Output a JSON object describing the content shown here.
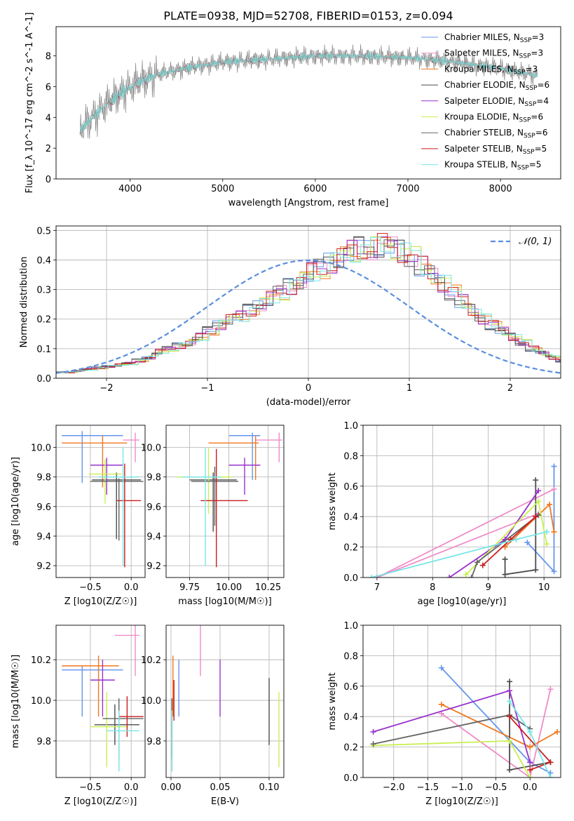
{
  "colors": [
    "#6495ed",
    "#f08cc8",
    "#f07820",
    "#4c4c4c",
    "#9932cc",
    "#c8f050",
    "#646464",
    "#c81e1e",
    "#78e6e6"
  ],
  "chart_data": [
    {
      "id": "spectrum",
      "type": "line",
      "title": "PLATE=0938, MJD=52708, FIBERID=0153, z=0.094",
      "xlabel": "wavelength [Angstrom, rest frame]",
      "ylabel": "Flux [f_λ 10^-17 erg cm^-2 s^-1 A^-1]",
      "xlim": [
        3200,
        8650
      ],
      "ylim": [
        0,
        9.9
      ],
      "xticks": [
        4000,
        5000,
        6000,
        7000,
        8000
      ],
      "yticks": [
        0,
        2,
        4,
        6,
        8
      ],
      "series": [
        {
          "name": "Chabrier MILES, N_SSP=3"
        },
        {
          "name": "Salpeter MILES, N_SSP=3"
        },
        {
          "name": "Kroupa MILES, N_SSP=3"
        },
        {
          "name": "Chabrier ELODIE, N_SSP=6"
        },
        {
          "name": "Salpeter ELODIE, N_SSP=4"
        },
        {
          "name": "Kroupa ELODIE, N_SSP=6"
        },
        {
          "name": "Chabrier STELIB, N_SSP=6"
        },
        {
          "name": "Salpeter STELIB, N_SSP=5"
        },
        {
          "name": "Kroupa STELIB, N_SSP=5"
        }
      ],
      "continuum_points": [
        [
          3460,
          3.2
        ],
        [
          3700,
          4.6
        ],
        [
          3900,
          5.6
        ],
        [
          4100,
          6.3
        ],
        [
          4300,
          6.8
        ],
        [
          4600,
          7.2
        ],
        [
          5000,
          7.6
        ],
        [
          5500,
          7.8
        ],
        [
          6000,
          8.0
        ],
        [
          6500,
          8.0
        ],
        [
          7000,
          7.9
        ],
        [
          7500,
          7.6
        ],
        [
          8000,
          7.2
        ],
        [
          8400,
          6.7
        ]
      ],
      "legend": "top-right"
    },
    {
      "id": "residuals",
      "type": "line",
      "xlabel": "(data-model)/error",
      "ylabel": "Normed distribution",
      "xlim": [
        -2.5,
        2.5
      ],
      "ylim": [
        0,
        0.515
      ],
      "xticks": [
        -2,
        -1,
        0,
        1,
        2
      ],
      "yticks": [
        0.0,
        0.1,
        0.2,
        0.3,
        0.4,
        0.5
      ],
      "bin_width": 0.1,
      "legend_label": "𝒩(0, 1)",
      "legend": "top-right",
      "histogram_profile": [
        0.02,
        0.025,
        0.03,
        0.035,
        0.04,
        0.045,
        0.05,
        0.06,
        0.07,
        0.09,
        0.1,
        0.11,
        0.12,
        0.14,
        0.16,
        0.18,
        0.2,
        0.21,
        0.23,
        0.25,
        0.27,
        0.29,
        0.31,
        0.33,
        0.36,
        0.37,
        0.39,
        0.41,
        0.43,
        0.44,
        0.44,
        0.45,
        0.44,
        0.43,
        0.41,
        0.38,
        0.35,
        0.32,
        0.29,
        0.26,
        0.23,
        0.2,
        0.18,
        0.16,
        0.14,
        0.12,
        0.1,
        0.085,
        0.07,
        0.06
      ]
    },
    {
      "id": "age-vs-Z",
      "type": "scatter",
      "xlabel": "Z [log10(Z/Z☉)]",
      "ylabel": "age  [log10(age/yr)]",
      "xlim": [
        -0.92,
        0.17
      ],
      "ylim": [
        9.12,
        10.15
      ],
      "xticks": [
        -0.5,
        0.0
      ],
      "xticklabels": [
        "−0.5",
        "0.0"
      ],
      "yticks": [
        9.2,
        9.4,
        9.6,
        9.8,
        10.0
      ],
      "points": [
        {
          "x": -0.6,
          "y": 10.08,
          "xerr": [
            0.25,
            0.5
          ],
          "yerr": [
            0.32,
            0.03
          ]
        },
        {
          "x": 0.05,
          "y": 10.05,
          "xerr": [
            0.15,
            0.05
          ],
          "yerr": [
            0.15,
            0.05
          ]
        },
        {
          "x": -0.35,
          "y": 10.03,
          "xerr": [
            0.5,
            0.3
          ],
          "yerr": [
            0.3,
            0.05
          ]
        },
        {
          "x": -0.18,
          "y": 9.78,
          "xerr": [
            0.3,
            0.3
          ],
          "yerr": [
            0.4,
            0.05
          ]
        },
        {
          "x": -0.3,
          "y": 9.88,
          "xerr": [
            0.2,
            0.2
          ],
          "yerr": [
            0.2,
            0.05
          ]
        },
        {
          "x": -0.32,
          "y": 9.82,
          "xerr": [
            0.2,
            0.2
          ],
          "yerr": [
            0.2,
            0.1
          ]
        },
        {
          "x": -0.15,
          "y": 9.77,
          "xerr": [
            0.35,
            0.3
          ],
          "yerr": [
            0.4,
            0.02
          ]
        },
        {
          "x": -0.08,
          "y": 9.64,
          "xerr": [
            0.1,
            0.2
          ],
          "yerr": [
            0.45,
            0.25
          ]
        },
        {
          "x": -0.1,
          "y": 9.8,
          "xerr": [
            0.3,
            0.2
          ],
          "yerr": [
            0.6,
            0.2
          ]
        }
      ]
    },
    {
      "id": "age-vs-mass",
      "type": "scatter",
      "xlabel": "mass [log10(M/M☉)]",
      "ylabel": "",
      "xlim": [
        9.6,
        10.35
      ],
      "ylim": [
        9.12,
        10.15
      ],
      "xticks": [
        9.75,
        10.0,
        10.25
      ],
      "xticklabels": [
        "9.75",
        "10.00",
        "10.25"
      ],
      "yticks": [
        9.2,
        9.4,
        9.6,
        9.8,
        10.0
      ],
      "points": [
        {
          "x": 10.15,
          "y": 10.08,
          "xerr": [
            0.15,
            0.05
          ],
          "yerr": [
            0.3,
            0.02
          ]
        },
        {
          "x": 10.32,
          "y": 10.05,
          "xerr": [
            0.15,
            0.02
          ],
          "yerr": [
            0.15,
            0.05
          ]
        },
        {
          "x": 10.17,
          "y": 10.03,
          "xerr": [
            0.3,
            0.02
          ],
          "yerr": [
            0.25,
            0.05
          ]
        },
        {
          "x": 9.9,
          "y": 9.78,
          "xerr": [
            0.15,
            0.15
          ],
          "yerr": [
            0.35,
            0.05
          ]
        },
        {
          "x": 10.1,
          "y": 9.88,
          "xerr": [
            0.1,
            0.1
          ],
          "yerr": [
            0.2,
            0.05
          ]
        },
        {
          "x": 9.87,
          "y": 9.8,
          "xerr": [
            0.2,
            0.15
          ],
          "yerr": [
            0.25,
            0.2
          ]
        },
        {
          "x": 9.91,
          "y": 9.77,
          "xerr": [
            0.15,
            0.15
          ],
          "yerr": [
            0.3,
            0.1
          ]
        },
        {
          "x": 9.92,
          "y": 9.64,
          "xerr": [
            0.1,
            0.2
          ],
          "yerr": [
            0.45,
            0.35
          ]
        },
        {
          "x": 9.85,
          "y": 9.8,
          "xerr": [
            0.15,
            0.1
          ],
          "yerr": [
            0.6,
            0.2
          ]
        }
      ]
    },
    {
      "id": "weight-vs-age",
      "type": "line",
      "xlabel": "age  [log10(age/yr)]",
      "ylabel": "mass weight",
      "xlim": [
        6.75,
        10.3
      ],
      "ylim": [
        0,
        1
      ],
      "xticks": [
        7,
        8,
        9,
        10
      ],
      "yticks": [
        0.0,
        0.2,
        0.4,
        0.6,
        0.8,
        1.0
      ],
      "series": [
        {
          "points": [
            [
              10.18,
              0.73
            ],
            [
              10.18,
              0.04
            ],
            [
              9.7,
              0.23
            ]
          ]
        },
        {
          "points": [
            [
              10.18,
              0.58
            ],
            [
              7.0,
              0.0
            ],
            [
              9.9,
              0.42
            ]
          ]
        },
        {
          "points": [
            [
              10.18,
              0.3
            ],
            [
              10.1,
              0.48
            ],
            [
              9.3,
              0.2
            ]
          ]
        },
        {
          "points": [
            [
              9.85,
              0.64
            ],
            [
              9.85,
              0.05
            ],
            [
              9.3,
              0.02
            ],
            [
              9.3,
              0.12
            ]
          ]
        },
        {
          "points": [
            [
              9.9,
              0.57
            ],
            [
              9.3,
              0.25
            ],
            [
              8.3,
              0.0
            ]
          ]
        },
        {
          "points": [
            [
              10.05,
              0.22
            ],
            [
              9.9,
              0.5
            ],
            [
              8.6,
              0.02
            ]
          ]
        },
        {
          "points": [
            [
              9.9,
              0.41
            ],
            [
              8.8,
              0.1
            ],
            [
              8.7,
              0.0
            ]
          ]
        },
        {
          "points": [
            [
              9.85,
              0.4
            ],
            [
              9.4,
              0.25
            ],
            [
              8.9,
              0.08
            ]
          ]
        },
        {
          "points": [
            [
              10.05,
              0.3
            ],
            [
              9.5,
              0.25
            ],
            [
              6.9,
              0.0
            ]
          ]
        }
      ]
    },
    {
      "id": "mass-vs-Z",
      "type": "scatter",
      "xlabel": "Z [log10(Z/Z☉)]",
      "ylabel": "mass [log10(M/M☉)]",
      "xlim": [
        -0.92,
        0.17
      ],
      "ylim": [
        9.62,
        10.37
      ],
      "xticks": [
        -0.5,
        0.0
      ],
      "xticklabels": [
        "−0.5",
        "0.0"
      ],
      "yticks": [
        9.8,
        10.0,
        10.2
      ],
      "points": [
        {
          "x": -0.6,
          "y": 10.15,
          "xerr": [
            0.25,
            0.5
          ],
          "yerr": [
            0.23,
            0.02
          ]
        },
        {
          "x": 0.05,
          "y": 10.32,
          "xerr": [
            0.25,
            0.05
          ],
          "yerr": [
            0.2,
            0.05
          ]
        },
        {
          "x": -0.4,
          "y": 10.17,
          "xerr": [
            0.45,
            0.25
          ],
          "yerr": [
            0.25,
            0.05
          ]
        },
        {
          "x": -0.2,
          "y": 9.88,
          "xerr": [
            0.25,
            0.3
          ],
          "yerr": [
            0.1,
            0.1
          ]
        },
        {
          "x": -0.35,
          "y": 10.1,
          "xerr": [
            0.15,
            0.15
          ],
          "yerr": [
            0.18,
            0.1
          ]
        },
        {
          "x": -0.3,
          "y": 9.87,
          "xerr": [
            0.2,
            0.25
          ],
          "yerr": [
            0.2,
            0.17
          ]
        },
        {
          "x": -0.15,
          "y": 9.91,
          "xerr": [
            0.2,
            0.3
          ],
          "yerr": [
            0.2,
            0.1
          ]
        },
        {
          "x": -0.05,
          "y": 9.92,
          "xerr": [
            0.1,
            0.2
          ],
          "yerr": [
            0.1,
            0.1
          ]
        },
        {
          "x": -0.15,
          "y": 9.85,
          "xerr": [
            0.15,
            0.25
          ],
          "yerr": [
            0.2,
            0.1
          ]
        }
      ]
    },
    {
      "id": "mass-vs-EBV",
      "type": "scatter",
      "xlabel": "E(B-V)",
      "ylabel": "",
      "xlim": [
        -0.005,
        0.115
      ],
      "ylim": [
        9.62,
        10.37
      ],
      "xticks": [
        0.0,
        0.05,
        0.1
      ],
      "xticklabels": [
        "0.00",
        "0.05",
        "0.10"
      ],
      "yticks": [
        9.8,
        10.0,
        10.2
      ],
      "points": [
        {
          "x": 0.008,
          "y": 10.15,
          "yerr": [
            0.23,
            0.05
          ]
        },
        {
          "x": 0.03,
          "y": 10.32,
          "yerr": [
            0.2,
            0.05
          ]
        },
        {
          "x": 0.002,
          "y": 10.17,
          "yerr": [
            0.25,
            0.05
          ]
        },
        {
          "x": 0.1,
          "y": 9.88,
          "yerr": [
            0.1,
            0.23
          ]
        },
        {
          "x": 0.05,
          "y": 10.1,
          "yerr": [
            0.18,
            0.1
          ]
        },
        {
          "x": 0.11,
          "y": 9.87,
          "yerr": [
            0.2,
            0.17
          ]
        },
        {
          "x": 0.001,
          "y": 9.91,
          "yerr": [
            0.2,
            0.1
          ]
        },
        {
          "x": 0.003,
          "y": 10.0,
          "yerr": [
            0.1,
            0.1
          ]
        },
        {
          "x": 0.001,
          "y": 9.85,
          "yerr": [
            0.2,
            0.1
          ]
        }
      ]
    },
    {
      "id": "weight-vs-Z",
      "type": "line",
      "xlabel": "Z [log10(Z/Z☉)]",
      "ylabel": "mass weight",
      "xlim": [
        -2.45,
        0.45
      ],
      "ylim": [
        0,
        1
      ],
      "xticks": [
        -2.0,
        -1.5,
        -1.0,
        -0.5,
        0.0
      ],
      "xticklabels": [
        "−2.0",
        "−1.5",
        "−1.0",
        "−0.5",
        "0.0"
      ],
      "yticks": [
        0.0,
        0.2,
        0.4,
        0.6,
        0.8,
        1.0
      ],
      "series": [
        {
          "points": [
            [
              -1.3,
              0.72
            ],
            [
              0.0,
              0.1
            ],
            [
              0.3,
              0.03
            ]
          ]
        },
        {
          "points": [
            [
              0.3,
              0.58
            ],
            [
              0.0,
              0.0
            ],
            [
              -1.3,
              0.42
            ]
          ]
        },
        {
          "points": [
            [
              0.4,
              0.3
            ],
            [
              0.0,
              0.2
            ],
            [
              -1.3,
              0.48
            ]
          ]
        },
        {
          "points": [
            [
              -0.3,
              0.63
            ],
            [
              -0.3,
              0.05
            ],
            [
              0.3,
              0.1
            ]
          ]
        },
        {
          "points": [
            [
              -2.3,
              0.3
            ],
            [
              -0.3,
              0.57
            ],
            [
              0.0,
              0.1
            ]
          ]
        },
        {
          "points": [
            [
              -2.3,
              0.21
            ],
            [
              -0.3,
              0.24
            ],
            [
              0.0,
              0.0
            ]
          ]
        },
        {
          "points": [
            [
              -2.3,
              0.22
            ],
            [
              -0.3,
              0.41
            ],
            [
              0.0,
              0.32
            ]
          ]
        },
        {
          "points": [
            [
              -0.3,
              0.4
            ],
            [
              0.3,
              0.1
            ],
            [
              0.0,
              0.05
            ]
          ]
        },
        {
          "points": [
            [
              -0.3,
              0.5
            ],
            [
              0.0,
              0.3
            ],
            [
              0.3,
              0.0
            ]
          ]
        }
      ]
    }
  ]
}
